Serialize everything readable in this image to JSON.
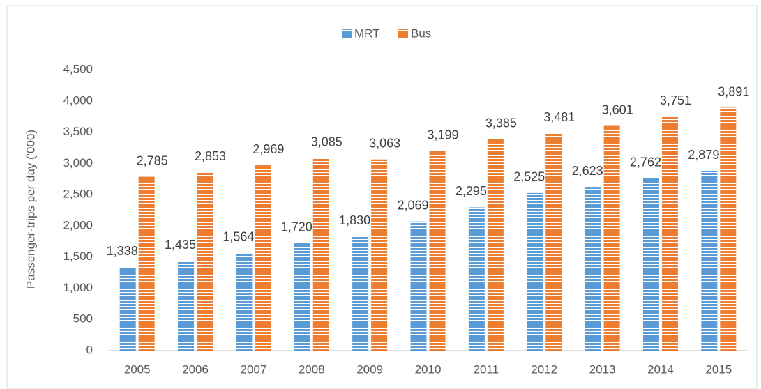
{
  "chart_data": {
    "type": "bar",
    "y_axis_label": "Passenger-trips per day ('000)",
    "categories": [
      "2005",
      "2006",
      "2007",
      "2008",
      "2009",
      "2010",
      "2011",
      "2012",
      "2013",
      "2014",
      "2015"
    ],
    "series": [
      {
        "name": "MRT",
        "color": "#5b9bd5",
        "values": [
          1338,
          1435,
          1564,
          1720,
          1830,
          2069,
          2295,
          2525,
          2623,
          2762,
          2879
        ],
        "value_labels": [
          "1,338",
          "1,435",
          "1,564",
          "1,720",
          "1,830",
          "2,069",
          "2,295",
          "2,525",
          "2,623",
          "2,762",
          "2,879"
        ]
      },
      {
        "name": "Bus",
        "color": "#ed7d31",
        "values": [
          2785,
          2853,
          2969,
          3085,
          3063,
          3199,
          3385,
          3481,
          3601,
          3751,
          3891
        ],
        "value_labels": [
          "2,785",
          "2,853",
          "2,969",
          "3,085",
          "3,063",
          "3,199",
          "3,385",
          "3,481",
          "3,601",
          "3,751",
          "3,891"
        ]
      }
    ],
    "ylim": [
      0,
      4500
    ],
    "yticks": [
      0,
      500,
      {
        "value": 1000,
        "label": "1,000"
      },
      {
        "value": 1500,
        "label": "1,500"
      },
      {
        "value": 2000,
        "label": "2,000"
      },
      {
        "value": 2500,
        "label": "2,500"
      },
      {
        "value": 3000,
        "label": "3,000"
      },
      {
        "value": 3500,
        "label": "3,500"
      },
      {
        "value": 4000,
        "label": "4,000"
      },
      {
        "value": 4500,
        "label": "4,500"
      }
    ],
    "legend": "top",
    "pattern": "horizontal-stripes"
  }
}
